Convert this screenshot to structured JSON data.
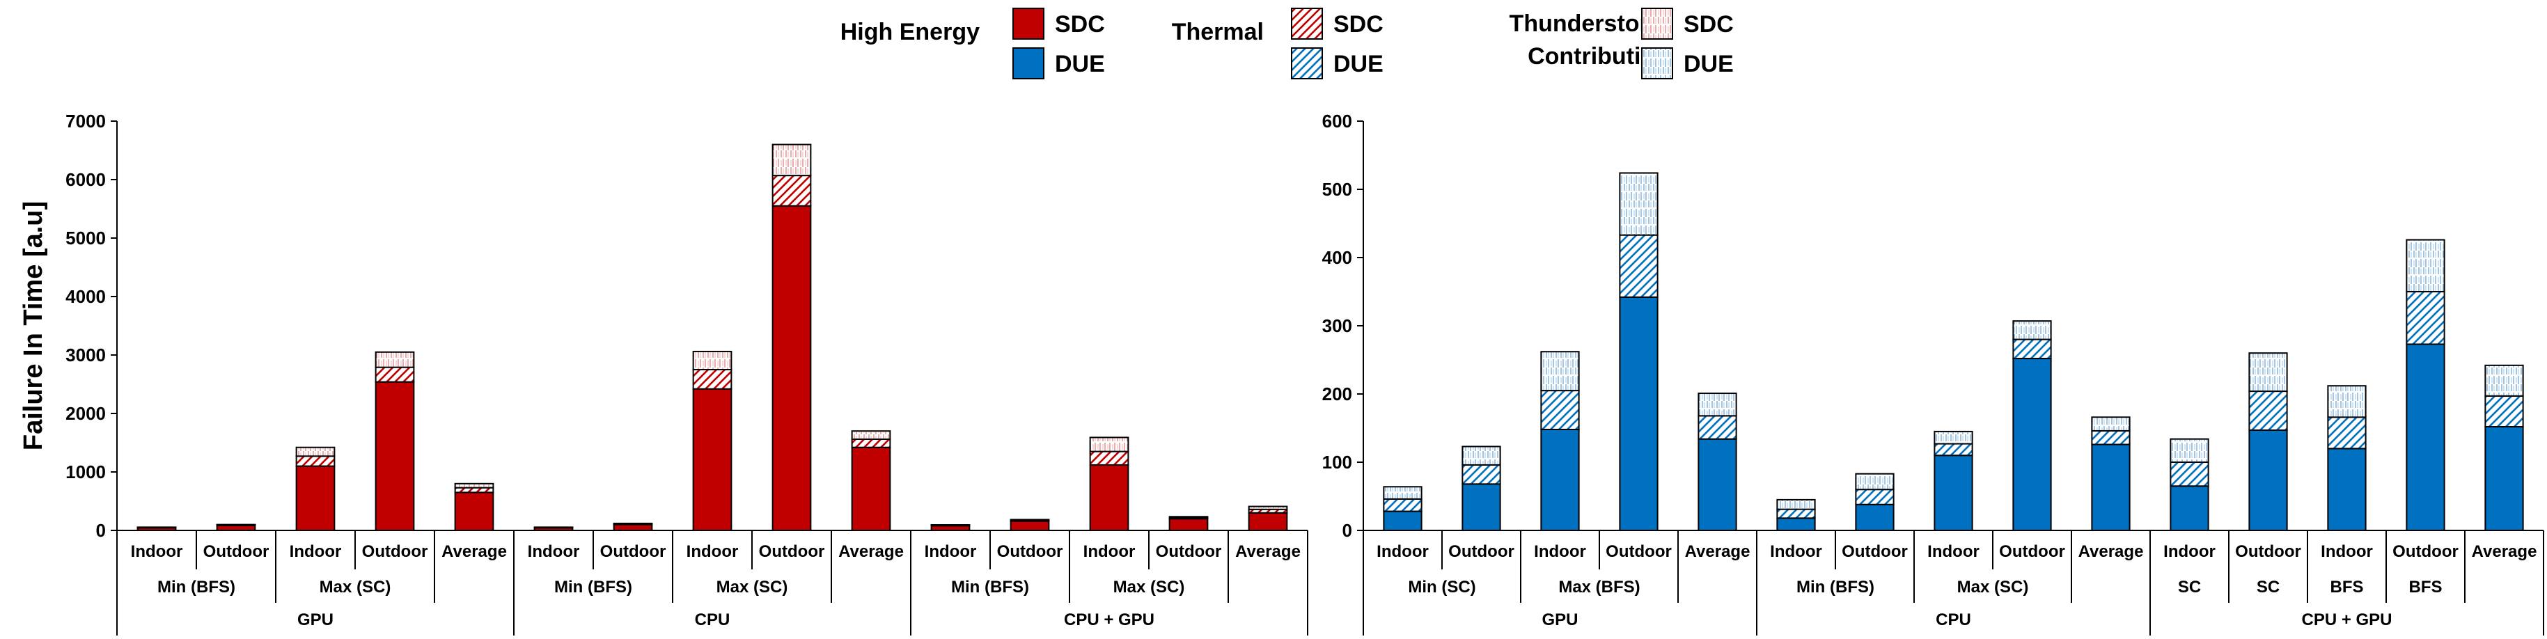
{
  "legend": {
    "groups": [
      {
        "title_lines": [
          "High Energy"
        ],
        "fill": "solid",
        "items": [
          {
            "label": "SDC",
            "color": "#C00000"
          },
          {
            "label": "DUE",
            "color": "#0070C0"
          }
        ]
      },
      {
        "title_lines": [
          "Thermal"
        ],
        "fill": "diag",
        "items": [
          {
            "label": "SDC",
            "color": "#C00000"
          },
          {
            "label": "DUE",
            "color": "#0070C0"
          }
        ]
      },
      {
        "title_lines": [
          "Thunderstorm",
          "Contribution"
        ],
        "fill": "vert",
        "items": [
          {
            "label": "SDC",
            "color": "#C00000"
          },
          {
            "label": "DUE",
            "color": "#0070C0"
          }
        ]
      }
    ]
  },
  "chart_data": [
    {
      "type": "bar",
      "stacked": true,
      "ylabel": "Failure In Time [a.u]",
      "ylim": [
        0,
        7000
      ],
      "yticks": [
        0,
        1000,
        2000,
        3000,
        4000,
        5000,
        6000,
        7000
      ],
      "color": "#C00000",
      "categories": [
        {
          "label": "Indoor",
          "he": 45,
          "thermal": 5,
          "storm": 5
        },
        {
          "label": "Outdoor",
          "he": 85,
          "thermal": 10,
          "storm": 5
        },
        {
          "label": "Indoor",
          "he": 1100,
          "thermal": 170,
          "storm": 150
        },
        {
          "label": "Outdoor",
          "he": 2540,
          "thermal": 250,
          "storm": 260
        },
        {
          "label": "Average",
          "he": 650,
          "thermal": 80,
          "storm": 70
        },
        {
          "label": "Indoor",
          "he": 45,
          "thermal": 5,
          "storm": 5
        },
        {
          "label": "Outdoor",
          "he": 100,
          "thermal": 10,
          "storm": 10
        },
        {
          "label": "Indoor",
          "he": 2420,
          "thermal": 330,
          "storm": 310
        },
        {
          "label": "Outdoor",
          "he": 5550,
          "thermal": 520,
          "storm": 530
        },
        {
          "label": "Average",
          "he": 1420,
          "thermal": 140,
          "storm": 140
        },
        {
          "label": "Indoor",
          "he": 80,
          "thermal": 10,
          "storm": 5
        },
        {
          "label": "Outdoor",
          "he": 160,
          "thermal": 15,
          "storm": 10
        },
        {
          "label": "Indoor",
          "he": 1120,
          "thermal": 230,
          "storm": 240
        },
        {
          "label": "Outdoor",
          "he": 200,
          "thermal": 20,
          "storm": 15
        },
        {
          "label": "Average",
          "he": 300,
          "thermal": 60,
          "storm": 50
        }
      ],
      "subgroups": [
        {
          "label": "Min (BFS)",
          "start": 0,
          "end": 2
        },
        {
          "label": "Max (SC)",
          "start": 2,
          "end": 4
        },
        {
          "label": "Min (BFS)",
          "start": 5,
          "end": 7
        },
        {
          "label": "Max (SC)",
          "start": 7,
          "end": 9
        },
        {
          "label": "Min (BFS)",
          "start": 10,
          "end": 12
        },
        {
          "label": "Max (SC)",
          "start": 12,
          "end": 14
        }
      ],
      "groups": [
        {
          "label": "GPU",
          "start": 0,
          "end": 5
        },
        {
          "label": "CPU",
          "start": 5,
          "end": 10
        },
        {
          "label": "CPU + GPU",
          "start": 10,
          "end": 15
        }
      ]
    },
    {
      "type": "bar",
      "stacked": true,
      "ylabel": "",
      "ylim": [
        0,
        600
      ],
      "yticks": [
        0,
        100,
        200,
        300,
        400,
        500,
        600
      ],
      "color": "#0070C0",
      "categories": [
        {
          "label": "Indoor",
          "he": 28,
          "thermal": 18,
          "storm": 18
        },
        {
          "label": "Outdoor",
          "he": 68,
          "thermal": 28,
          "storm": 27
        },
        {
          "label": "Indoor",
          "he": 148,
          "thermal": 57,
          "storm": 57
        },
        {
          "label": "Outdoor",
          "he": 342,
          "thermal": 91,
          "storm": 91
        },
        {
          "label": "Average",
          "he": 134,
          "thermal": 34,
          "storm": 33
        },
        {
          "label": "Indoor",
          "he": 18,
          "thermal": 13,
          "storm": 14
        },
        {
          "label": "Outdoor",
          "he": 38,
          "thermal": 22,
          "storm": 23
        },
        {
          "label": "Indoor",
          "he": 110,
          "thermal": 17,
          "storm": 18
        },
        {
          "label": "Outdoor",
          "he": 252,
          "thermal": 28,
          "storm": 27
        },
        {
          "label": "Average",
          "he": 126,
          "thermal": 20,
          "storm": 20
        },
        {
          "label": "Indoor",
          "he": 65,
          "thermal": 35,
          "storm": 34
        },
        {
          "label": "Outdoor",
          "he": 147,
          "thermal": 57,
          "storm": 56
        },
        {
          "label": "Indoor",
          "he": 120,
          "thermal": 46,
          "storm": 46
        },
        {
          "label": "Outdoor",
          "he": 273,
          "thermal": 77,
          "storm": 76
        },
        {
          "label": "Average",
          "he": 152,
          "thermal": 45,
          "storm": 45
        }
      ],
      "subgroups": [
        {
          "label": "Min (SC)",
          "start": 0,
          "end": 2
        },
        {
          "label": "Max (BFS)",
          "start": 2,
          "end": 4
        },
        {
          "label": "Min (BFS)",
          "start": 5,
          "end": 7
        },
        {
          "label": "Max (SC)",
          "start": 7,
          "end": 9
        },
        {
          "label": "SC",
          "start": 10,
          "end": 11
        },
        {
          "label": "SC",
          "start": 11,
          "end": 12
        },
        {
          "label": "BFS",
          "start": 12,
          "end": 13
        },
        {
          "label": "BFS",
          "start": 13,
          "end": 14
        }
      ],
      "groups": [
        {
          "label": "GPU",
          "start": 0,
          "end": 5
        },
        {
          "label": "CPU",
          "start": 5,
          "end": 10
        },
        {
          "label": "CPU + GPU",
          "start": 10,
          "end": 15
        }
      ]
    }
  ]
}
